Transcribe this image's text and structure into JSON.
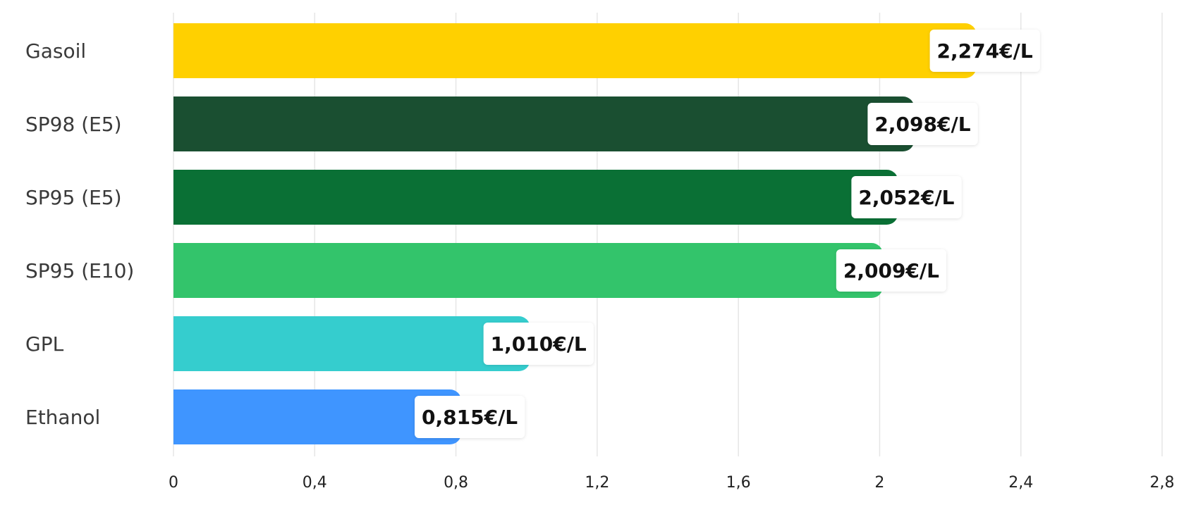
{
  "chart_data": {
    "type": "bar",
    "orientation": "horizontal",
    "categories": [
      "Gasoil",
      "SP98 (E5)",
      "SP95 (E5)",
      "SP95 (E10)",
      "GPL",
      "Ethanol"
    ],
    "values": [
      2.274,
      2.098,
      2.052,
      2.009,
      1.01,
      0.815
    ],
    "data_labels": [
      "2,274€/L",
      "2,098€/L",
      "2,052€/L",
      "2,009€/L",
      "1,010€/L",
      "0,815€/L"
    ],
    "colors": [
      "#FFD000",
      "#1A4F31",
      "#0A7035",
      "#33C46B",
      "#35CDCE",
      "#3F95FF"
    ],
    "xlim": [
      0,
      2.8
    ],
    "x_ticks": [
      0,
      0.4,
      0.8,
      1.2,
      1.6,
      2,
      2.4,
      2.8
    ],
    "x_tick_labels": [
      "0",
      "0,4",
      "0,8",
      "1,2",
      "1,6",
      "2",
      "2,4",
      "2,8"
    ],
    "grid": "vertical",
    "title": "",
    "xlabel": "",
    "ylabel": ""
  }
}
